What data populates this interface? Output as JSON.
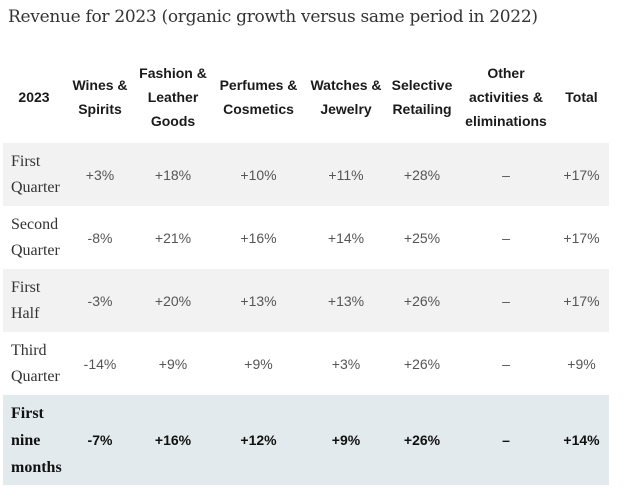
{
  "title": "Revenue for 2023  (organic growth versus same period in 2022)",
  "columns": [
    "2023",
    "Wines & Spirits",
    "Fashion & Leather Goods",
    "Perfumes & Cosmetics",
    "Watches & Jewelry",
    "Selective Retailing",
    "Other activities & eliminations",
    "Total"
  ],
  "rows": [
    {
      "label": "First Quarter",
      "values": [
        "+3%",
        "+18%",
        "+10%",
        "+11%",
        "+28%",
        "–",
        "+17%"
      ]
    },
    {
      "label": "Second Quarter",
      "values": [
        "-8%",
        "+21%",
        "+16%",
        "+14%",
        "+25%",
        "–",
        "+17%"
      ]
    },
    {
      "label": "First Half",
      "values": [
        "-3%",
        "+20%",
        "+13%",
        "+13%",
        "+26%",
        "–",
        "+17%"
      ]
    },
    {
      "label": "Third Quarter",
      "values": [
        "-14%",
        "+9%",
        "+9%",
        "+3%",
        "+26%",
        "–",
        "+9%"
      ]
    },
    {
      "label": "First nine months",
      "values": [
        "-7%",
        "+16%",
        "+12%",
        "+9%",
        "+26%",
        "–",
        "+14%"
      ]
    }
  ]
}
